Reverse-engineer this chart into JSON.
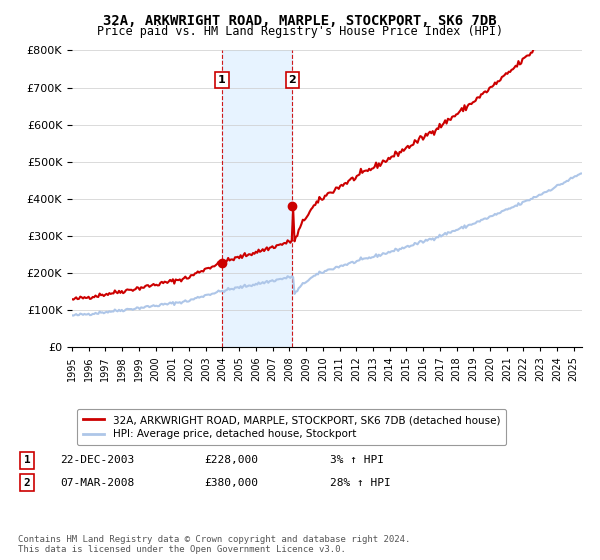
{
  "title": "32A, ARKWRIGHT ROAD, MARPLE, STOCKPORT, SK6 7DB",
  "subtitle": "Price paid vs. HM Land Registry's House Price Index (HPI)",
  "ylim": [
    0,
    800000
  ],
  "xlim_start": 1995.0,
  "xlim_end": 2025.5,
  "hpi_color": "#aec6e8",
  "price_color": "#cc0000",
  "sale1_x": 2003.97,
  "sale1_y": 228000,
  "sale2_x": 2008.18,
  "sale2_y": 380000,
  "shade_color": "#ddeeff",
  "legend_label_red": "32A, ARKWRIGHT ROAD, MARPLE, STOCKPORT, SK6 7DB (detached house)",
  "legend_label_blue": "HPI: Average price, detached house, Stockport",
  "annotation1_num": "1",
  "annotation1_date": "22-DEC-2003",
  "annotation1_price": "£228,000",
  "annotation1_hpi": "3% ↑ HPI",
  "annotation2_num": "2",
  "annotation2_date": "07-MAR-2008",
  "annotation2_price": "£380,000",
  "annotation2_hpi": "28% ↑ HPI",
  "footer": "Contains HM Land Registry data © Crown copyright and database right 2024.\nThis data is licensed under the Open Government Licence v3.0.",
  "background_color": "#ffffff"
}
